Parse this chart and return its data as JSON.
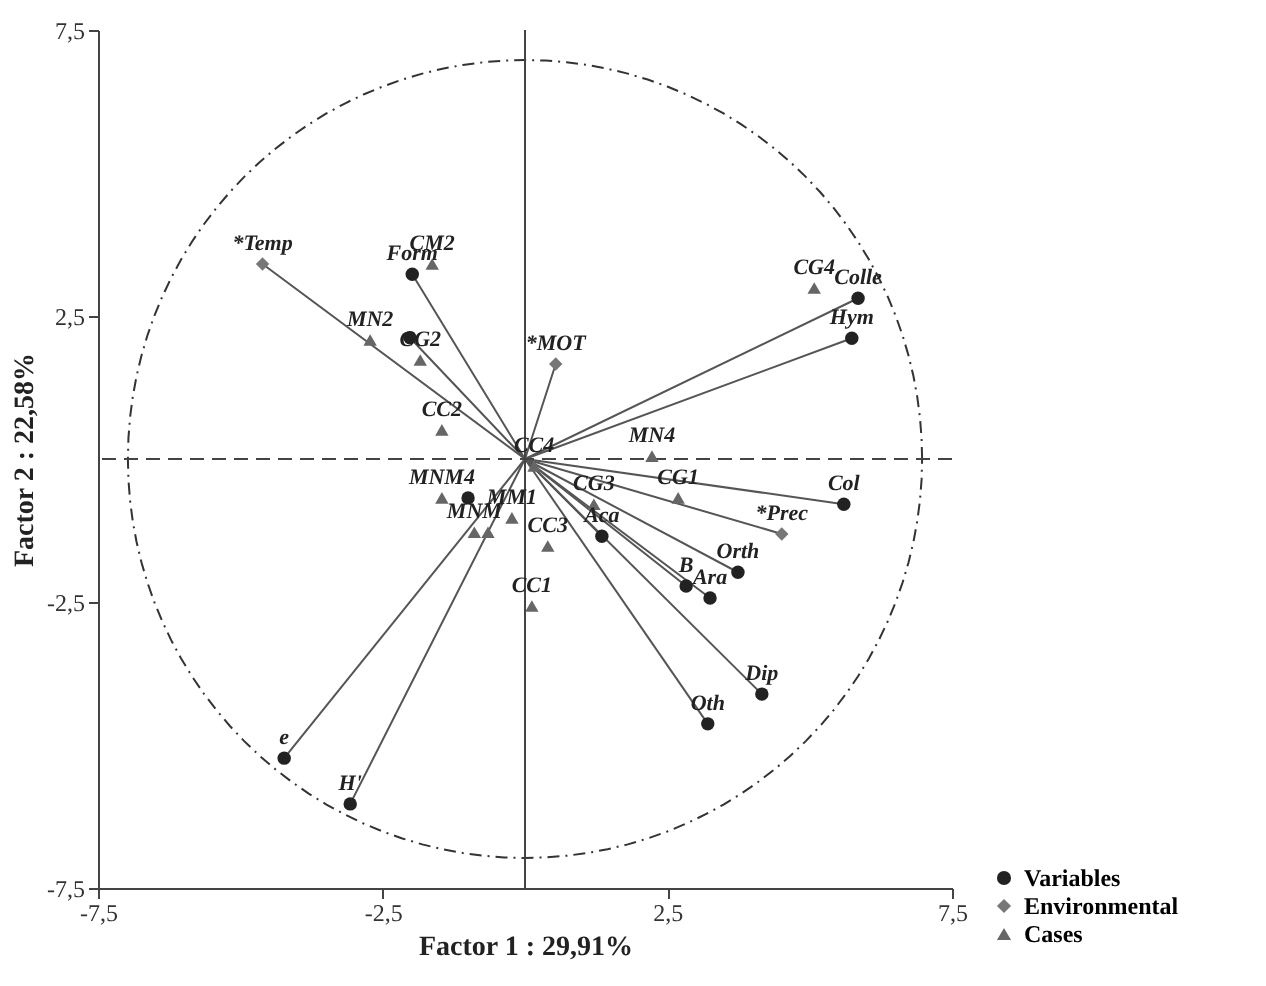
{
  "chart_data": {
    "type": "scatter",
    "xlabel": "Factor 1 : 29,91%",
    "ylabel": "Factor 2 : 22,58%",
    "xlim": [
      -7.5,
      7.5
    ],
    "ylim": [
      -7.5,
      7.5
    ],
    "xticks": [
      {
        "value": -7.5,
        "label": "-7,5"
      },
      {
        "value": -2.5,
        "label": "-2,5"
      },
      {
        "value": 2.5,
        "label": "2,5"
      },
      {
        "value": 7.5,
        "label": "7,5"
      }
    ],
    "yticks": [
      {
        "value": -7.5,
        "label": "-7,5"
      },
      {
        "value": -2.5,
        "label": "-2,5"
      },
      {
        "value": 2.5,
        "label": "2,5"
      },
      {
        "value": 7.5,
        "label": "7,5"
      }
    ],
    "grid": false,
    "legend": "bottom right",
    "series": [
      {
        "type": "line",
        "color": "#555555",
        "x": [
          -4.23,
          0
        ],
        "values": [
          -5.23,
          0
        ]
      },
      {
        "type": "line",
        "color": "#555555",
        "x": [
          -3.07,
          0,
          0.54
        ],
        "values": [
          -6.03,
          0,
          1.66
        ]
      },
      {
        "type": "line",
        "color": "#555555",
        "x": [
          -1.98,
          0,
          2.83
        ],
        "values": [
          3.23,
          0,
          -2.22
        ]
      },
      {
        "type": "line",
        "color": "#555555",
        "x": [
          -2.02,
          0,
          1.35
        ],
        "values": [
          2.12,
          0,
          -1.35
        ]
      },
      {
        "type": "line",
        "color": "#555555",
        "x": [
          0,
          5.85
        ],
        "values": [
          0,
          2.81
        ]
      },
      {
        "type": "line",
        "color": "#555555",
        "x": [
          0,
          5.74
        ],
        "values": [
          0,
          2.11
        ]
      },
      {
        "type": "line",
        "color": "#555555",
        "x": [
          0,
          5.6
        ],
        "values": [
          0,
          -0.79
        ]
      },
      {
        "type": "line",
        "color": "#555555",
        "x": [
          0,
          3.74
        ],
        "values": [
          0,
          -1.98
        ]
      },
      {
        "type": "line",
        "color": "#555555",
        "x": [
          0,
          4.16
        ],
        "values": [
          0,
          -4.11
        ]
      },
      {
        "type": "line",
        "color": "#555555",
        "x": [
          0,
          3.21
        ],
        "values": [
          0,
          -4.63
        ]
      },
      {
        "type": "line",
        "color": "#555555",
        "x": [
          -4.61,
          0,
          3.25
        ],
        "values": [
          3.41,
          0,
          -2.43
        ]
      },
      {
        "type": "line",
        "color": "#555555",
        "x": [
          0,
          4.51
        ],
        "values": [
          0,
          -1.31
        ]
      },
      {
        "name": "Variables",
        "color": "#222222",
        "marker": "circle",
        "x": [
          -4.23,
          -3.07,
          -1.98,
          -2.02,
          5.85,
          5.74,
          5.6,
          3.74,
          2.83,
          3.25,
          1.35,
          4.16,
          3.21,
          -1.0
        ],
        "values": [
          -5.23,
          -6.03,
          3.23,
          2.12,
          2.81,
          2.11,
          -0.79,
          -1.98,
          -2.22,
          -2.43,
          -1.35,
          -4.11,
          -4.63,
          -0.68
        ]
      },
      {
        "name": "Environmental",
        "color": "#777777",
        "marker": "diamond",
        "x": [
          -4.61,
          0.54,
          4.51
        ],
        "values": [
          3.41,
          1.66,
          -1.31
        ]
      },
      {
        "name": "Cases",
        "color": "#666666",
        "marker": "triangle",
        "x": [
          -1.63,
          -2.72,
          -1.84,
          -1.46,
          5.08,
          2.23,
          2.69,
          1.21,
          0.16,
          -0.23,
          0.4,
          0.12,
          -0.89,
          -0.65,
          -1.46
        ],
        "values": [
          3.41,
          2.08,
          1.73,
          0.51,
          2.99,
          0.05,
          -0.68,
          -0.79,
          -0.12,
          -1.03,
          -1.52,
          -2.57,
          -1.28,
          -1.28,
          -0.68
        ]
      }
    ],
    "ref_lines": [
      {
        "axis": "x",
        "value": 0,
        "color": "#444444",
        "line_style": "solid"
      },
      {
        "axis": "y",
        "value": 0,
        "color": "#444444",
        "line_style": "dashed"
      }
    ],
    "annotations": [
      {
        "text": "*Temp",
        "x": -4.61,
        "y": 3.41
      },
      {
        "text": "CM2",
        "x": -1.63,
        "y": 3.41
      },
      {
        "text": "Form",
        "x": -1.98,
        "y": 3.23
      },
      {
        "text": "MN2",
        "x": -2.72,
        "y": 2.08
      },
      {
        "text": "CG2",
        "x": -1.84,
        "y": 1.73
      },
      {
        "text": "*MOT",
        "x": 0.54,
        "y": 1.66
      },
      {
        "text": "CC2",
        "x": -1.46,
        "y": 0.51
      },
      {
        "text": "CG4",
        "x": 5.08,
        "y": 2.99
      },
      {
        "text": "Colle",
        "x": 5.85,
        "y": 2.81
      },
      {
        "text": "Hym",
        "x": 5.74,
        "y": 2.11
      },
      {
        "text": "MN4",
        "x": 2.23,
        "y": 0.05
      },
      {
        "text": "CC4",
        "x": 0.16,
        "y": -0.12
      },
      {
        "text": "CG1",
        "x": 2.69,
        "y": -0.68
      },
      {
        "text": "Col",
        "x": 5.6,
        "y": -0.79
      },
      {
        "text": "*Prec",
        "x": 4.51,
        "y": -1.31
      },
      {
        "text": "CG3",
        "x": 1.21,
        "y": -0.79
      },
      {
        "text": "Aca",
        "x": 1.35,
        "y": -1.35
      },
      {
        "text": "Orth",
        "x": 3.74,
        "y": -1.98
      },
      {
        "text": "B",
        "x": 2.83,
        "y": -2.22
      },
      {
        "text": "Ara",
        "x": 3.25,
        "y": -2.43
      },
      {
        "text": "CC3",
        "x": 0.4,
        "y": -1.52
      },
      {
        "text": "MNM4",
        "x": -1.46,
        "y": -0.68
      },
      {
        "text": "MM1",
        "x": -0.23,
        "y": -1.03
      },
      {
        "text": "MNM",
        "x": -0.89,
        "y": -1.28
      },
      {
        "text": "CC1",
        "x": 0.12,
        "y": -2.57
      },
      {
        "text": "Dip",
        "x": 4.16,
        "y": -4.11
      },
      {
        "text": "Oth",
        "x": 3.21,
        "y": -4.63
      },
      {
        "text": "e",
        "x": -4.23,
        "y": -5.23
      },
      {
        "text": "H'",
        "x": -3.07,
        "y": -6.03
      }
    ]
  }
}
